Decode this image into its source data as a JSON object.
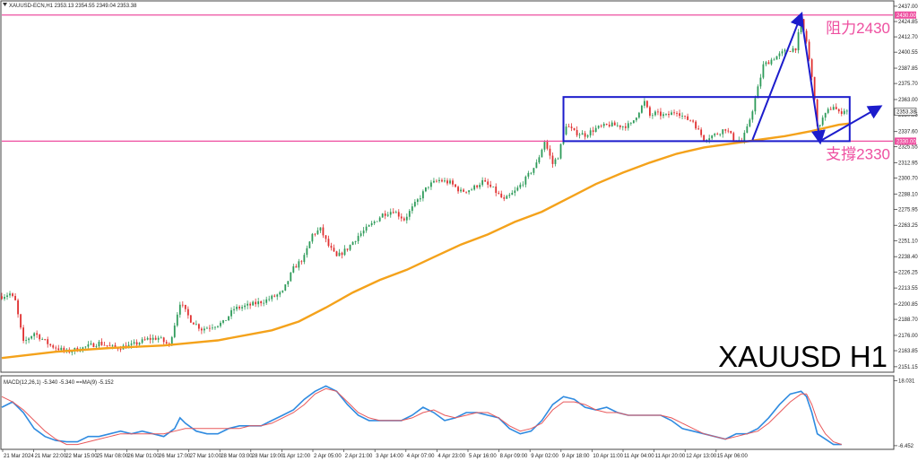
{
  "header": {
    "symbol_info": "XAUUSD-ECN,H1  2353.13 2354.55 2349.04 2353.38",
    "macd_info": "MACD(12,26,1) -5.340 -5.340  ==MA(9) -5.152"
  },
  "overlay_title": "XAUUSD H1",
  "colors": {
    "up": "#2e9b5a",
    "down": "#e03030",
    "ma": "#f4a21b",
    "level": "#ee4fa0",
    "box": "#1c1ccc",
    "macd": "#2f8be0",
    "signal": "#e8585a"
  },
  "chart_data": [
    {
      "type": "candlestick",
      "symbol": "XAUUSD",
      "timeframe": "H1",
      "price_axis": {
        "ticks": [
          2437.0,
          2424.85,
          2412.7,
          2400.55,
          2387.85,
          2375.7,
          2363.0,
          2350.85,
          2337.6,
          2325.55,
          2312.95,
          2300.7,
          2288.1,
          2275.95,
          2263.25,
          2251.1,
          2238.4,
          2226.25,
          2213.55,
          2200.85,
          2188.7,
          2176.0,
          2163.85,
          2151.15
        ],
        "ylim": [
          2147.5,
          2440.5
        ]
      },
      "time_axis": {
        "labels": [
          "21 Mar 2024",
          "21 Mar 22:00",
          "22 Mar 15:00",
          "25 Mar 08:00",
          "26 Mar 01:00",
          "26 Mar 17:00",
          "27 Mar 10:00",
          "28 Mar 03:00",
          "28 Mar 19:00",
          "1 Apr 12:00",
          "2 Apr 05:00",
          "2 Apr 21:00",
          "3 Apr 14:00",
          "4 Apr 07:00",
          "4 Apr 23:00",
          "5 Apr 16:00",
          "8 Apr 09:00",
          "9 Apr 02:00",
          "9 Apr 18:00",
          "10 Apr 11:00",
          "11 Apr 04:00",
          "11 Apr 20:00",
          "12 Apr 13:00",
          "15 Apr 06:00"
        ]
      },
      "price_path": [
        [
          0,
          2207
        ],
        [
          3,
          2209
        ],
        [
          5,
          2203
        ],
        [
          8,
          2170
        ],
        [
          12,
          2178
        ],
        [
          18,
          2168
        ],
        [
          24,
          2163
        ],
        [
          30,
          2166
        ],
        [
          36,
          2170
        ],
        [
          42,
          2166
        ],
        [
          48,
          2168
        ],
        [
          54,
          2173
        ],
        [
          58,
          2174
        ],
        [
          62,
          2168
        ],
        [
          66,
          2202
        ],
        [
          70,
          2188
        ],
        [
          74,
          2181
        ],
        [
          82,
          2186
        ],
        [
          86,
          2197
        ],
        [
          92,
          2200
        ],
        [
          98,
          2204
        ],
        [
          104,
          2210
        ],
        [
          108,
          2229
        ],
        [
          112,
          2238
        ],
        [
          115,
          2256
        ],
        [
          118,
          2260
        ],
        [
          121,
          2247
        ],
        [
          124,
          2238
        ],
        [
          128,
          2245
        ],
        [
          132,
          2255
        ],
        [
          137,
          2264
        ],
        [
          141,
          2272
        ],
        [
          145,
          2275
        ],
        [
          149,
          2268
        ],
        [
          153,
          2280
        ],
        [
          158,
          2295
        ],
        [
          162,
          2299
        ],
        [
          166,
          2297
        ],
        [
          170,
          2290
        ],
        [
          174,
          2292
        ],
        [
          178,
          2298
        ],
        [
          182,
          2292
        ],
        [
          186,
          2283
        ],
        [
          190,
          2290
        ],
        [
          194,
          2300
        ],
        [
          198,
          2312
        ],
        [
          201,
          2330
        ],
        [
          204,
          2312
        ],
        [
          206,
          2318
        ],
        [
          209,
          2343
        ],
        [
          212,
          2337
        ],
        [
          216,
          2335
        ],
        [
          220,
          2340
        ],
        [
          225,
          2343
        ],
        [
          230,
          2342
        ],
        [
          233,
          2343
        ],
        [
          236,
          2354
        ],
        [
          238,
          2361
        ],
        [
          240,
          2350
        ],
        [
          242,
          2352
        ],
        [
          246,
          2350
        ],
        [
          250,
          2354
        ],
        [
          253,
          2348
        ],
        [
          256,
          2346
        ],
        [
          258,
          2338
        ],
        [
          260,
          2332
        ],
        [
          264,
          2335
        ],
        [
          268,
          2340
        ],
        [
          271,
          2332
        ],
        [
          274,
          2330
        ],
        [
          276,
          2340
        ],
        [
          278,
          2355
        ],
        [
          280,
          2372
        ],
        [
          282,
          2390
        ],
        [
          286,
          2396
        ],
        [
          290,
          2401
        ],
        [
          294,
          2404
        ],
        [
          296,
          2425
        ],
        [
          298,
          2409
        ],
        [
          300,
          2380
        ],
        [
          301,
          2365
        ],
        [
          302,
          2340
        ],
        [
          304,
          2348
        ],
        [
          306,
          2354
        ],
        [
          308,
          2358
        ],
        [
          310,
          2352
        ],
        [
          312,
          2355
        ],
        [
          314,
          2353
        ]
      ],
      "moving_average": [
        [
          0,
          2158
        ],
        [
          20,
          2163
        ],
        [
          40,
          2166
        ],
        [
          60,
          2168
        ],
        [
          80,
          2172
        ],
        [
          100,
          2180
        ],
        [
          110,
          2187
        ],
        [
          120,
          2198
        ],
        [
          130,
          2210
        ],
        [
          140,
          2220
        ],
        [
          150,
          2228
        ],
        [
          160,
          2238
        ],
        [
          170,
          2248
        ],
        [
          180,
          2256
        ],
        [
          190,
          2266
        ],
        [
          200,
          2274
        ],
        [
          210,
          2285
        ],
        [
          220,
          2296
        ],
        [
          230,
          2305
        ],
        [
          240,
          2313
        ],
        [
          250,
          2320
        ],
        [
          260,
          2325
        ],
        [
          270,
          2328
        ],
        [
          280,
          2331
        ],
        [
          290,
          2334
        ],
        [
          300,
          2338
        ],
        [
          310,
          2343
        ],
        [
          314,
          2344
        ]
      ],
      "horizontal_levels": [
        {
          "label": "阻力2430",
          "value": 2430.0,
          "tag": "2430.00"
        },
        {
          "label": "支撐2330",
          "value": 2330.0,
          "tag": "2330.00"
        }
      ],
      "current_price": 2353.38,
      "annotations": {
        "range_box": {
          "x_from": 208,
          "x_to": 314,
          "y_from": 2330,
          "y_to": 2365
        },
        "arrows": [
          {
            "from": [
              278,
              2331
            ],
            "to": [
              296,
              2430
            ]
          },
          {
            "from": [
              296,
              2430
            ],
            "to": [
              303,
              2330
            ]
          },
          {
            "from": [
              303,
              2330
            ],
            "to": [
              325,
              2357
            ]
          }
        ]
      }
    },
    {
      "type": "line",
      "title": "MACD(12,26,1) -5.340 -5.340  ==MA(9) -5.152",
      "value_axis": {
        "ticks": [
          18.031,
          -6.452
        ],
        "ylim": [
          -7.5,
          19.5
        ]
      },
      "series": [
        {
          "name": "MACD",
          "points": [
            [
              0,
              8
            ],
            [
              4,
              10
            ],
            [
              8,
              6
            ],
            [
              12,
              0
            ],
            [
              16,
              -3
            ],
            [
              20,
              -4.5
            ],
            [
              24,
              -5
            ],
            [
              28,
              -5
            ],
            [
              32,
              -3
            ],
            [
              36,
              -3
            ],
            [
              40,
              -2
            ],
            [
              44,
              -1
            ],
            [
              48,
              -2
            ],
            [
              52,
              -1
            ],
            [
              56,
              -2
            ],
            [
              60,
              -3
            ],
            [
              64,
              0
            ],
            [
              66,
              4
            ],
            [
              68,
              2
            ],
            [
              72,
              -1
            ],
            [
              76,
              -2
            ],
            [
              80,
              -2
            ],
            [
              84,
              0
            ],
            [
              88,
              1
            ],
            [
              92,
              1
            ],
            [
              96,
              1
            ],
            [
              100,
              3
            ],
            [
              104,
              5
            ],
            [
              108,
              7
            ],
            [
              112,
              11
            ],
            [
              116,
              14
            ],
            [
              120,
              16
            ],
            [
              124,
              14
            ],
            [
              128,
              9
            ],
            [
              132,
              5
            ],
            [
              136,
              3
            ],
            [
              140,
              3
            ],
            [
              144,
              3
            ],
            [
              148,
              3
            ],
            [
              152,
              5
            ],
            [
              156,
              8
            ],
            [
              160,
              6
            ],
            [
              164,
              3
            ],
            [
              168,
              4
            ],
            [
              172,
              6
            ],
            [
              176,
              6
            ],
            [
              180,
              5
            ],
            [
              184,
              4
            ],
            [
              188,
              0
            ],
            [
              192,
              -2
            ],
            [
              196,
              -1
            ],
            [
              200,
              3
            ],
            [
              204,
              9
            ],
            [
              208,
              12
            ],
            [
              212,
              11
            ],
            [
              216,
              8
            ],
            [
              220,
              7
            ],
            [
              224,
              8
            ],
            [
              228,
              6
            ],
            [
              232,
              5
            ],
            [
              236,
              5
            ],
            [
              240,
              5
            ],
            [
              244,
              5
            ],
            [
              248,
              3
            ],
            [
              252,
              0
            ],
            [
              256,
              -1
            ],
            [
              260,
              -2
            ],
            [
              264,
              -3
            ],
            [
              268,
              -4
            ],
            [
              272,
              -2
            ],
            [
              276,
              -2
            ],
            [
              280,
              0
            ],
            [
              284,
              4
            ],
            [
              288,
              9
            ],
            [
              292,
              13
            ],
            [
              296,
              14
            ],
            [
              298,
              12
            ],
            [
              300,
              6
            ],
            [
              302,
              -2
            ],
            [
              305,
              -4
            ],
            [
              308,
              -6
            ],
            [
              311,
              -6
            ]
          ]
        },
        {
          "name": "MA(9)",
          "points": [
            [
              0,
              12
            ],
            [
              4,
              10
            ],
            [
              8,
              7
            ],
            [
              12,
              3
            ],
            [
              16,
              -1
            ],
            [
              20,
              -4
            ],
            [
              24,
              -6
            ],
            [
              28,
              -6
            ],
            [
              32,
              -5
            ],
            [
              36,
              -4
            ],
            [
              40,
              -3
            ],
            [
              44,
              -2
            ],
            [
              48,
              -2
            ],
            [
              52,
              -2
            ],
            [
              56,
              -2
            ],
            [
              60,
              -2
            ],
            [
              64,
              -1
            ],
            [
              68,
              0
            ],
            [
              72,
              0
            ],
            [
              76,
              0
            ],
            [
              80,
              0
            ],
            [
              84,
              0
            ],
            [
              88,
              0
            ],
            [
              92,
              1
            ],
            [
              96,
              1
            ],
            [
              100,
              2
            ],
            [
              104,
              4
            ],
            [
              108,
              6
            ],
            [
              112,
              9
            ],
            [
              116,
              13
            ],
            [
              120,
              15
            ],
            [
              124,
              14
            ],
            [
              128,
              10
            ],
            [
              132,
              6
            ],
            [
              136,
              4
            ],
            [
              140,
              3
            ],
            [
              144,
              3
            ],
            [
              148,
              3
            ],
            [
              152,
              4
            ],
            [
              156,
              6
            ],
            [
              160,
              7
            ],
            [
              164,
              5
            ],
            [
              168,
              4
            ],
            [
              172,
              5
            ],
            [
              176,
              6
            ],
            [
              180,
              6
            ],
            [
              184,
              4
            ],
            [
              188,
              1
            ],
            [
              192,
              -1
            ],
            [
              196,
              0
            ],
            [
              200,
              2
            ],
            [
              204,
              7
            ],
            [
              208,
              10
            ],
            [
              212,
              10
            ],
            [
              216,
              9
            ],
            [
              220,
              7
            ],
            [
              224,
              6
            ],
            [
              228,
              6
            ],
            [
              232,
              5
            ],
            [
              236,
              5
            ],
            [
              240,
              5
            ],
            [
              244,
              5
            ],
            [
              248,
              4
            ],
            [
              252,
              2
            ],
            [
              256,
              0
            ],
            [
              260,
              -2
            ],
            [
              264,
              -3
            ],
            [
              268,
              -4
            ],
            [
              272,
              -3
            ],
            [
              276,
              -2
            ],
            [
              280,
              -1
            ],
            [
              284,
              2
            ],
            [
              288,
              6
            ],
            [
              292,
              10
            ],
            [
              296,
              13
            ],
            [
              298,
              13
            ],
            [
              300,
              9
            ],
            [
              302,
              3
            ],
            [
              305,
              -2
            ],
            [
              308,
              -5
            ],
            [
              311,
              -6
            ]
          ]
        }
      ]
    }
  ]
}
